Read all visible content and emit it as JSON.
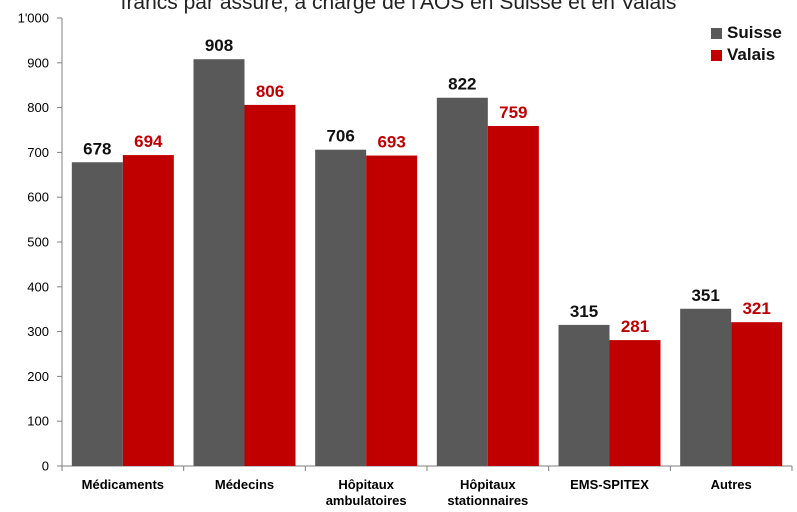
{
  "chart_data": {
    "type": "bar",
    "title": "francs par assuré, à charge de l'AOS en Suisse et en Valais",
    "categories": [
      "Médicaments",
      "Médecins",
      [
        "Hôpitaux",
        "ambulatoires"
      ],
      [
        "Hôpitaux",
        "stationnaires"
      ],
      "EMS-SPITEX",
      "Autres"
    ],
    "series": [
      {
        "name": "Suisse",
        "color": "#595959",
        "label_color": "#111111",
        "values": [
          678,
          908,
          706,
          822,
          315,
          351
        ]
      },
      {
        "name": "Valais",
        "color": "#c00000",
        "label_color": "#c00000",
        "values": [
          694,
          806,
          693,
          759,
          281,
          321
        ]
      }
    ],
    "ylim": [
      0,
      1000
    ],
    "yticks": [
      0,
      100,
      200,
      300,
      400,
      500,
      600,
      700,
      800,
      900,
      1000
    ],
    "ytick_labels": [
      "0",
      "100",
      "200",
      "300",
      "400",
      "500",
      "600",
      "700",
      "800",
      "900",
      "1'000"
    ],
    "grid": false,
    "legend_position": "top-right"
  }
}
